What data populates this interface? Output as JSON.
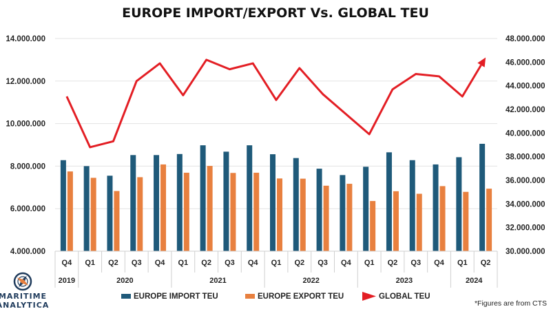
{
  "chart_data": {
    "type": "bar",
    "title": "EUROPE IMPORT/EXPORT Vs. GLOBAL TEU",
    "categories": [
      "Q4",
      "Q1",
      "Q2",
      "Q3",
      "Q4",
      "Q1",
      "Q2",
      "Q3",
      "Q4",
      "Q1",
      "Q2",
      "Q3",
      "Q4",
      "Q1",
      "Q2",
      "Q3",
      "Q4",
      "Q1",
      "Q2"
    ],
    "year_groups": [
      {
        "label": "2019",
        "count": 1
      },
      {
        "label": "2020",
        "count": 4
      },
      {
        "label": "2021",
        "count": 4
      },
      {
        "label": "2022",
        "count": 4
      },
      {
        "label": "2023",
        "count": 4
      },
      {
        "label": "2024",
        "count": 2
      }
    ],
    "series": [
      {
        "name": "EUROPE IMPORT TEU",
        "type": "bar",
        "axis": "left",
        "color": "#1f5a7a",
        "values": [
          8280000,
          8000000,
          7550000,
          8520000,
          8520000,
          8570000,
          8980000,
          8680000,
          8980000,
          8560000,
          8380000,
          7880000,
          7580000,
          7970000,
          8650000,
          8280000,
          8080000,
          8420000,
          9050000
        ]
      },
      {
        "name": "EUROPE EXPORT TEU",
        "type": "bar",
        "axis": "left",
        "color": "#e8803f",
        "values": [
          7750000,
          7450000,
          6830000,
          7480000,
          8080000,
          7690000,
          8010000,
          7680000,
          7690000,
          7420000,
          7410000,
          7080000,
          7170000,
          6360000,
          6820000,
          6700000,
          7060000,
          6790000,
          6940000
        ]
      },
      {
        "name": "GLOBAL TEU",
        "type": "line",
        "axis": "right",
        "color": "#e31e24",
        "values": [
          43100000,
          38800000,
          39300000,
          44400000,
          45900000,
          43200000,
          46200000,
          45400000,
          45900000,
          42800000,
          45500000,
          43300000,
          41600000,
          39900000,
          43700000,
          45000000,
          44800000,
          43100000,
          46400000
        ]
      }
    ],
    "y_left": {
      "min": 4000000,
      "max": 14000000,
      "ticks": [
        "4.000.000",
        "6.000.000",
        "8.000.000",
        "10.000.000",
        "12.000.000",
        "14.000.000"
      ]
    },
    "y_right": {
      "min": 30000000,
      "max": 48000000,
      "ticks": [
        "30.000.000",
        "32.000.000",
        "34.000.000",
        "36.000.000",
        "38.000.000",
        "40.000.000",
        "42.000.000",
        "44.000.000",
        "46.000.000",
        "48.000.000"
      ]
    },
    "grid": true,
    "legend_position": "bottom",
    "legend": [
      "EUROPE IMPORT TEU",
      "EUROPE EXPORT TEU",
      "GLOBAL TEU"
    ],
    "annotation": "*Figures are from CTS"
  },
  "logo": {
    "line1": "MARITIME",
    "line2": "ANALYTICA"
  }
}
